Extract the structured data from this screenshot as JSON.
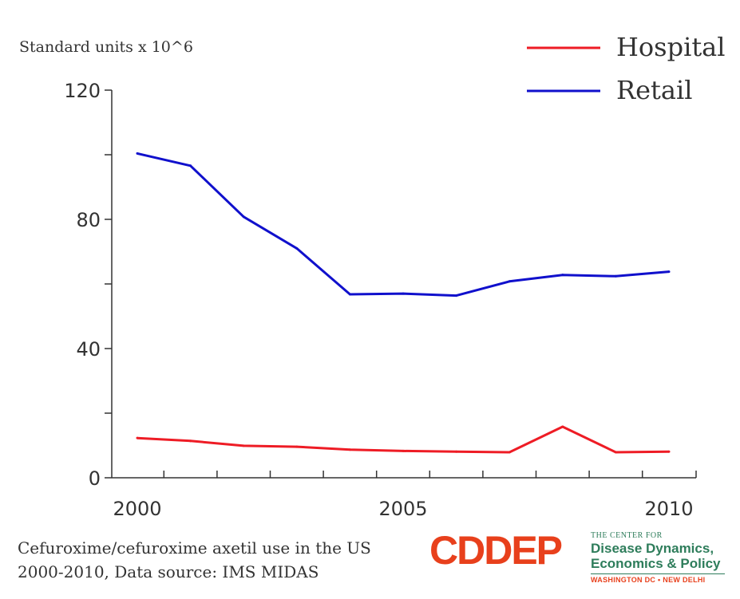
{
  "chart_data": {
    "type": "line",
    "ylabel": "Standard units x 10^6",
    "xlabel": "",
    "x": [
      2000,
      2001,
      2002,
      2003,
      2004,
      2005,
      2006,
      2007,
      2008,
      2009,
      2010
    ],
    "xlim": [
      1999.5,
      2010.5
    ],
    "ylim": [
      0,
      120
    ],
    "xticks": [
      2000,
      2001,
      2002,
      2003,
      2004,
      2005,
      2006,
      2007,
      2008,
      2009,
      2010
    ],
    "xtick_labels": [
      "2000",
      "",
      "",
      "",
      "",
      "2005",
      "",
      "",
      "",
      "",
      "2010"
    ],
    "yticks": [
      0,
      20,
      40,
      60,
      80,
      100,
      120
    ],
    "ytick_labels": [
      "0",
      "",
      "40",
      "",
      "80",
      "",
      "120"
    ],
    "grid": false,
    "legend_position": "top-right",
    "series": [
      {
        "name": "Hospital",
        "color": "#ee1c25",
        "values": [
          12.3,
          11.4,
          9.9,
          9.6,
          8.7,
          8.3,
          8.1,
          7.9,
          15.8,
          7.9,
          8.1
        ]
      },
      {
        "name": "Retail",
        "color": "#1010cc",
        "values": [
          100.4,
          96.6,
          80.8,
          71.0,
          56.8,
          57.0,
          56.4,
          60.8,
          62.8,
          62.4,
          63.8
        ]
      }
    ]
  },
  "caption": {
    "line1": "Cefuroxime/cefuroxime axetil use in the US",
    "line2": "2000-2010, Data source: IMS MIDAS"
  },
  "logo": {
    "mark": "CDDEP",
    "top_line": "THE CENTER FOR",
    "name_line1": "Disease Dynamics,",
    "name_line2": "Economics & Policy",
    "cities": "WASHINGTON DC • NEW DELHI"
  }
}
